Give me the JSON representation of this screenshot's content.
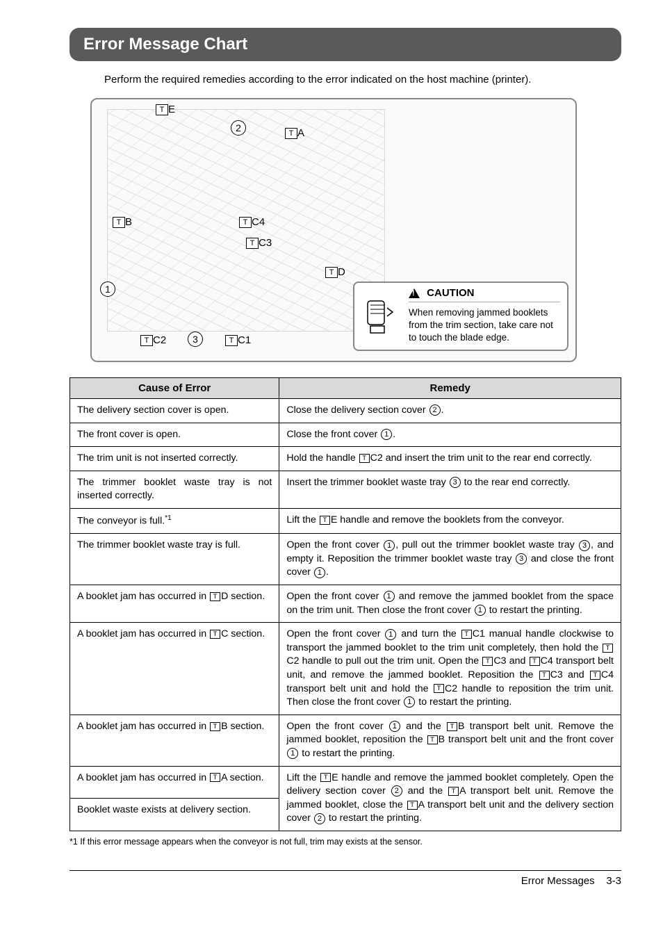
{
  "header": {
    "title": "Error Message Chart"
  },
  "intro": "Perform the required remedies according to the error indicated on the host machine (printer).",
  "diagram": {
    "labels": {
      "TE": "E",
      "TA": "A",
      "TB": "B",
      "TC4": "C4",
      "TC3": "C3",
      "TD": "D",
      "TC2": "C2",
      "TC1": "C1",
      "circ1": "1",
      "circ2": "2",
      "circ3": "3"
    }
  },
  "caution": {
    "heading": "CAUTION",
    "body": "When removing jammed booklets from the trim section, take care not to touch the blade edge."
  },
  "table": {
    "headers": {
      "cause": "Cause of Error",
      "remedy": "Remedy"
    },
    "rows": [
      {
        "cause": "The delivery section cover is open.",
        "remedy_pre": "Close the delivery section cover ",
        "remedy_circ": "2",
        "remedy_post": "."
      },
      {
        "cause": "The front cover is open.",
        "remedy_pre": "Close the front cover ",
        "remedy_circ": "1",
        "remedy_post": "."
      },
      {
        "cause": "The trim unit is not inserted correctly.",
        "remedy_html": "Hold the handle <span class='inlinebox'>T</span>C2 and insert the trim unit to the rear end correctly."
      },
      {
        "cause": "The trimmer booklet waste tray is not inserted correctly.",
        "remedy_html": "Insert the trimmer booklet waste tray <span class='inlinecirc'>3</span> to the rear end correctly."
      },
      {
        "cause_html": "The conveyor is full.<sup>*1</sup>",
        "remedy_html": "Lift the <span class='inlinebox'>T</span>E handle and remove the booklets from the conveyor."
      },
      {
        "cause": "The trimmer booklet waste tray is full.",
        "remedy_html": "Open the front cover <span class='inlinecirc'>1</span>, pull out the trimmer booklet waste tray <span class='inlinecirc'>3</span>, and empty it. Reposition the trimmer booklet waste tray <span class='inlinecirc'>3</span> and close the front cover <span class='inlinecirc'>1</span>."
      },
      {
        "cause_html": "A booklet jam has occurred in <span class='inlinebox'>T</span>D section.",
        "remedy_html": "Open the front cover <span class='inlinecirc'>1</span> and remove the jammed booklet from the space on the trim unit. Then close the front cover <span class='inlinecirc'>1</span> to restart the printing."
      },
      {
        "cause_html": "A booklet jam has occurred in <span class='inlinebox'>T</span>C section.",
        "remedy_html": "Open the front cover <span class='inlinecirc'>1</span> and turn the <span class='inlinebox'>T</span>C1 manual handle clockwise to transport the jammed booklet to the trim unit completely, then hold the <span class='inlinebox'>T</span>C2 handle to pull out the trim unit. Open the <span class='inlinebox'>T</span>C3 and <span class='inlinebox'>T</span>C4 transport belt unit, and remove the jammed booklet. Reposition the <span class='inlinebox'>T</span>C3 and <span class='inlinebox'>T</span>C4 transport belt unit and hold the <span class='inlinebox'>T</span>C2 handle to reposition the trim unit. Then close the front cover <span class='inlinecirc'>1</span> to restart the printing."
      },
      {
        "cause_html": "A booklet jam has occurred in <span class='inlinebox'>T</span>B section.",
        "remedy_html": "Open the front cover <span class='inlinecirc'>1</span> and the <span class='inlinebox'>T</span>B transport belt unit. Remove the jammed booklet, reposition the <span class='inlinebox'>T</span>B transport belt unit and the front cover <span class='inlinecirc'>1</span> to restart the printing."
      },
      {
        "merge": true,
        "cause1_html": "A booklet jam has occurred in <span class='inlinebox'>T</span>A section.",
        "cause2": "Booklet waste exists at delivery section.",
        "remedy_html": "Lift the <span class='inlinebox'>T</span>E handle and remove the jammed booklet completely. Open the delivery section cover <span class='inlinecirc'>2</span> and the <span class='inlinebox'>T</span>A transport belt unit. Remove the jammed booklet, close the <span class='inlinebox'>T</span>A transport belt unit and the delivery section cover <span class='inlinecirc'>2</span> to restart the printing."
      }
    ]
  },
  "footnote": "*1 If this error message appears when the conveyor is not full, trim may exists at the sensor.",
  "footer": {
    "section": "Error Messages",
    "page": "3-3"
  }
}
